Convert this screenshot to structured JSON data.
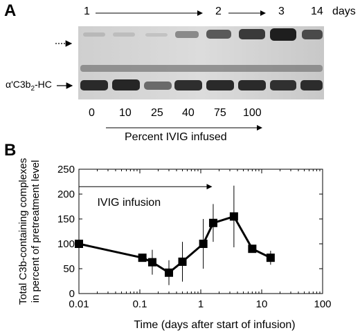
{
  "figure": {
    "panel_a": {
      "label": "A",
      "day_markers": [
        "1",
        "2",
        "3",
        "14"
      ],
      "days_label": "days",
      "band_label_prefix": "α'C3b",
      "band_label_sub": "2",
      "band_label_suffix": "-HC",
      "lanes": [
        "0",
        "10",
        "25",
        "40",
        "75",
        "100"
      ],
      "arrow_caption": "Percent IVIG infused",
      "colors": {
        "gel_bg": "#d9d9d9",
        "band_dark": "#2a2a2a"
      }
    },
    "panel_b": {
      "label": "B"
    }
  },
  "chart_data": {
    "type": "line",
    "xlabel": "Time (days after start of infusion)",
    "ylabel_line1": "Total C3b-containing complexes",
    "ylabel_line2": "in percent of pretreatment level",
    "x_scale": "log",
    "xlim": [
      0.01,
      100
    ],
    "ylim": [
      0,
      250
    ],
    "x_ticks": [
      "0.01",
      "0.1",
      "1",
      "10",
      "100"
    ],
    "y_ticks": [
      "0",
      "50",
      "100",
      "150",
      "200",
      "250"
    ],
    "annotation": "IVIG infusion",
    "annotation_arrow": [
      0.01,
      1.5
    ],
    "annotation_y": 215,
    "grid": false,
    "series": [
      {
        "points": [
          {
            "x": 0.01,
            "y": 100,
            "err": 0
          },
          {
            "x": 0.11,
            "y": 72,
            "err": 0
          },
          {
            "x": 0.16,
            "y": 63,
            "err": 25
          },
          {
            "x": 0.3,
            "y": 42,
            "err": 25
          },
          {
            "x": 0.5,
            "y": 64,
            "err": 40
          },
          {
            "x": 1.1,
            "y": 100,
            "err": 50
          },
          {
            "x": 1.6,
            "y": 142,
            "err": 38
          },
          {
            "x": 3.5,
            "y": 155,
            "err": 62
          },
          {
            "x": 7.0,
            "y": 90,
            "err": 0
          },
          {
            "x": 14.0,
            "y": 72,
            "err": 14
          }
        ]
      }
    ]
  }
}
